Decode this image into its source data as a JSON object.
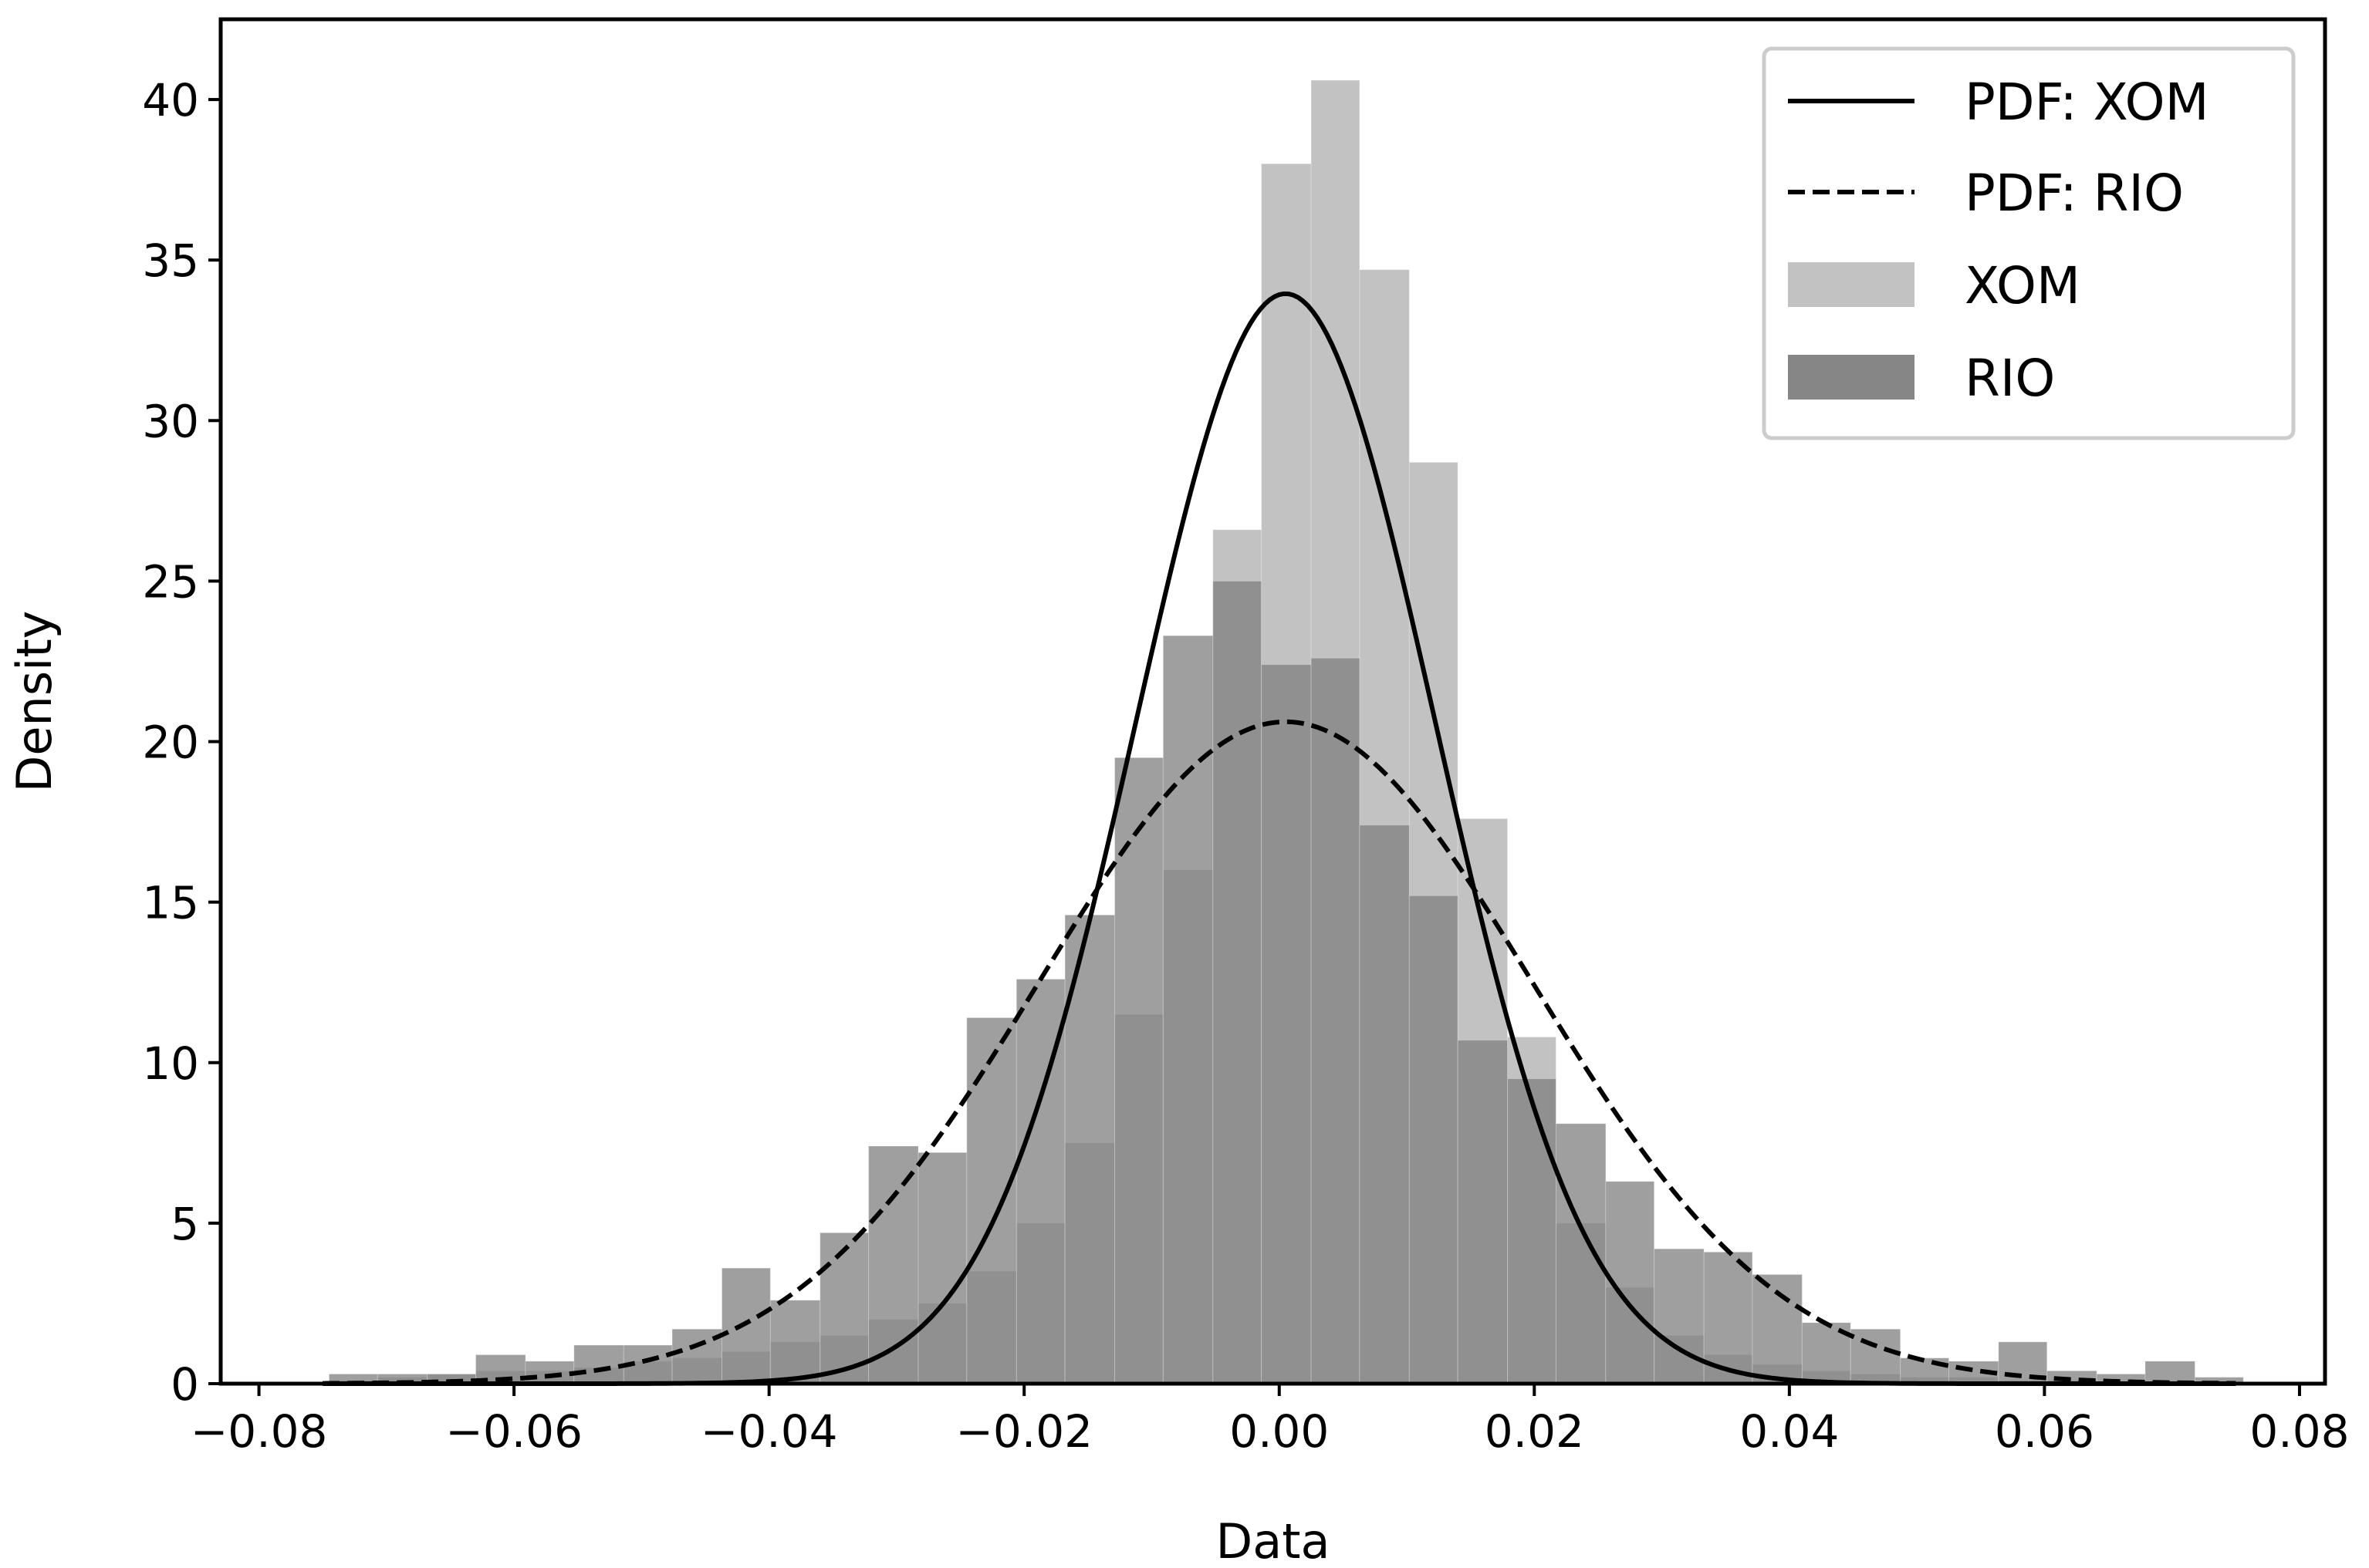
{
  "chart_data": {
    "type": "bar",
    "subtype": "histogram-with-pdf",
    "title": "",
    "xlabel": "Data",
    "ylabel": "Density",
    "xlim": [
      -0.083,
      0.082
    ],
    "ylim": [
      0,
      42.5
    ],
    "xticks": [
      -0.08,
      -0.06,
      -0.04,
      -0.02,
      0.0,
      0.02,
      0.04,
      0.06,
      0.08
    ],
    "xtick_labels": [
      "−0.08",
      "−0.06",
      "−0.04",
      "−0.02",
      "0.00",
      "0.02",
      "0.04",
      "0.06",
      "0.08"
    ],
    "yticks": [
      0,
      5,
      10,
      15,
      20,
      25,
      30,
      35,
      40
    ],
    "ytick_labels": [
      "0",
      "5",
      "10",
      "15",
      "20",
      "25",
      "30",
      "35",
      "40"
    ],
    "grid": false,
    "legend_position": "top-right",
    "bin_edges": [
      -0.0745,
      -0.0707,
      -0.0668,
      -0.063,
      -0.0591,
      -0.0553,
      -0.0514,
      -0.0476,
      -0.0437,
      -0.0399,
      -0.036,
      -0.0322,
      -0.0283,
      -0.0245,
      -0.0206,
      -0.0168,
      -0.0129,
      -0.0091,
      -0.0052,
      -0.0014,
      0.0025,
      0.0063,
      0.0102,
      0.014,
      0.0179,
      0.0217,
      0.0256,
      0.0294,
      0.0333,
      0.0371,
      0.041,
      0.0448,
      0.0487,
      0.0525,
      0.0564,
      0.0602,
      0.0641,
      0.0679,
      0.0718,
      0.0756
    ],
    "histograms": [
      {
        "name": "XOM",
        "color": "#bfbfbf",
        "values": [
          0.1,
          0.2,
          0.3,
          0.4,
          0.4,
          0.5,
          0.7,
          0.8,
          1.0,
          1.3,
          1.5,
          2.0,
          2.5,
          3.5,
          5.0,
          7.5,
          11.5,
          16.0,
          26.6,
          38.0,
          40.6,
          34.7,
          28.7,
          17.6,
          10.8,
          5.0,
          3.0,
          1.5,
          0.9,
          0.6,
          0.4,
          0.3,
          0.2,
          0.2,
          0.1,
          0.1,
          0.0,
          0.0,
          0.0
        ]
      },
      {
        "name": "RIO",
        "color": "#7f7f7f",
        "values": [
          0.3,
          0.3,
          0.3,
          0.9,
          0.7,
          1.2,
          1.2,
          1.7,
          3.6,
          2.6,
          4.7,
          7.4,
          7.2,
          11.4,
          12.6,
          14.6,
          19.5,
          23.3,
          25.0,
          22.4,
          22.6,
          17.4,
          15.2,
          10.7,
          9.5,
          8.1,
          6.3,
          4.2,
          4.1,
          3.4,
          1.9,
          1.7,
          0.8,
          0.7,
          1.3,
          0.4,
          0.3,
          0.7,
          0.2
        ]
      }
    ],
    "series": [
      {
        "name": "PDF: XOM",
        "dist": "normal",
        "mean": 0.0005,
        "std": 0.01175,
        "line_style": "solid",
        "x_range": [
          -0.075,
          0.075
        ]
      },
      {
        "name": "PDF: RIO",
        "dist": "normal",
        "mean": 0.0005,
        "std": 0.01935,
        "line_style": "dashed",
        "x_range": [
          -0.075,
          0.075
        ]
      }
    ],
    "legend": [
      {
        "label": "PDF: XOM",
        "kind": "line-solid"
      },
      {
        "label": "PDF: RIO",
        "kind": "line-dashed"
      },
      {
        "label": "XOM",
        "kind": "patch",
        "color": "#bfbfbf"
      },
      {
        "label": "RIO",
        "kind": "patch",
        "color": "#7f7f7f"
      }
    ]
  }
}
